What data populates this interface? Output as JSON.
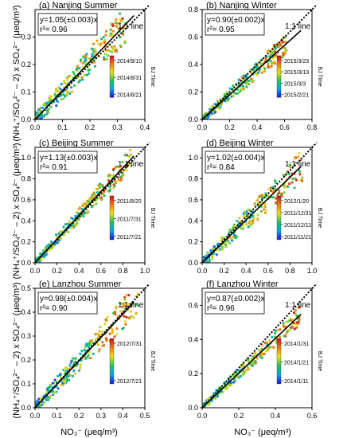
{
  "figure": {
    "ylabel_left": "(NH₄⁺/SO₄²⁻ – 2) x SO₄²⁻ (μeq/m³)",
    "xlabel": "NO₃⁻ (μeq/m³)",
    "colorbar_label": "BJ Time",
    "ref_line_label": "1:1 line"
  },
  "chart_data": [
    {
      "type": "scatter",
      "title": "(a) Nanjing Summer",
      "fit": {
        "equation": "y=1.05(±0.003)x",
        "r2": "r²= 0.96",
        "slope": 1.05
      },
      "xlim": [
        0,
        0.4
      ],
      "ylim": [
        0,
        0.4
      ],
      "xticks": [
        "0.0",
        "0.1",
        "0.2",
        "0.3",
        "0.4"
      ],
      "yticks": [
        "0.0",
        "0.1",
        "0.2",
        "0.3"
      ],
      "yticks_values": [
        0,
        0.1,
        0.2,
        0.3
      ],
      "colorbar_ticks": [
        "2014/9/10",
        "2014/8/31",
        "2014/8/21"
      ],
      "scatter_extent": 0.33,
      "scatter_noise": 0.1,
      "colorbar": "top-right"
    },
    {
      "type": "scatter",
      "title": "(b) Nanjing Winter",
      "fit": {
        "equation": "y=0.90(±0.002)x",
        "r2": "r²= 0.95",
        "slope": 0.9
      },
      "xlim": [
        0,
        0.8
      ],
      "ylim": [
        0,
        0.8
      ],
      "xticks": [
        "0.0",
        "0.2",
        "0.4",
        "0.6",
        "0.8"
      ],
      "yticks": [
        "0.0",
        "0.2",
        "0.4",
        "0.6",
        "0.8"
      ],
      "yticks_values": [
        0,
        0.2,
        0.4,
        0.6,
        0.8
      ],
      "colorbar_ticks": [
        "2015/3/23",
        "2015/3/13",
        "2015/3/3",
        "2015/2/21"
      ],
      "scatter_extent": 0.62,
      "scatter_noise": 0.12,
      "colorbar": "right"
    },
    {
      "type": "scatter",
      "title": "(c) Beijing Summer",
      "fit": {
        "equation": "y=1.13(±0.003)x",
        "r2": "r²= 0.91",
        "slope": 1.13
      },
      "xlim": [
        0,
        1.0
      ],
      "ylim": [
        0,
        1.1
      ],
      "xticks": [
        "0.0",
        "0.2",
        "0.4",
        "0.6",
        "0.8",
        "1.0"
      ],
      "yticks": [
        "0.0",
        "0.2",
        "0.4",
        "0.6",
        "0.8",
        "1.0"
      ],
      "yticks_values": [
        0,
        0.2,
        0.4,
        0.6,
        0.8,
        1.0
      ],
      "colorbar_ticks": [
        "2011/8/20",
        "2011/7/31",
        "2011/7/21"
      ],
      "scatter_extent": 0.88,
      "scatter_noise": 0.16,
      "colorbar": "right"
    },
    {
      "type": "scatter",
      "title": "(d) Beijing Winter",
      "fit": {
        "equation": "y=1.02(±0.004)x",
        "r2": "r²= 0.84",
        "slope": 1.02
      },
      "xlim": [
        0,
        1.0
      ],
      "ylim": [
        0,
        1.1
      ],
      "xticks": [
        "0.0",
        "0.2",
        "0.4",
        "0.6",
        "0.8",
        "1.0"
      ],
      "yticks": [
        "0.0",
        "0.2",
        "0.4",
        "0.6",
        "0.8",
        "1.0"
      ],
      "yticks_values": [
        0,
        0.2,
        0.4,
        0.6,
        0.8,
        1.0
      ],
      "colorbar_ticks": [
        "2012/1/20",
        "2011/12/31",
        "2011/12/11",
        "2011/11/21"
      ],
      "scatter_extent": 0.92,
      "scatter_noise": 0.22,
      "colorbar": "right"
    },
    {
      "type": "scatter",
      "title": "(e) Lanzhou Summer",
      "fit": {
        "equation": "y=0.98(±0.004)x",
        "r2": "r²= 0.90",
        "slope": 0.98
      },
      "xlim": [
        0,
        0.5
      ],
      "ylim": [
        0,
        0.5
      ],
      "xticks": [
        "0.0",
        "0.1",
        "0.2",
        "0.3",
        "0.4",
        "0.5"
      ],
      "yticks": [
        "0.0",
        "0.1",
        "0.2",
        "0.3",
        "0.4",
        "0.5"
      ],
      "yticks_values": [
        0,
        0.1,
        0.2,
        0.3,
        0.4,
        0.5
      ],
      "colorbar_ticks": [
        "2012/7/31",
        "2012/7/21"
      ],
      "scatter_extent": 0.47,
      "scatter_noise": 0.1,
      "colorbar": "right"
    },
    {
      "type": "scatter",
      "title": "(f) Lanzhou Winter",
      "fit": {
        "equation": "y=0.87(±0.002)x",
        "r2": "r²= 0.96",
        "slope": 0.87
      },
      "xlim": [
        0,
        0.7
      ],
      "ylim": [
        0,
        0.7
      ],
      "xticks": [
        "0.0",
        "0.2",
        "0.4",
        "0.6"
      ],
      "yticks": [
        "0.0",
        "0.2",
        "0.4",
        "0.6"
      ],
      "yticks_values": [
        0,
        0.2,
        0.4,
        0.6
      ],
      "colorbar_ticks": [
        "2014/1/31",
        "2014/1/21",
        "2014/1/11"
      ],
      "scatter_extent": 0.62,
      "scatter_noise": 0.08,
      "colorbar": "right"
    }
  ]
}
